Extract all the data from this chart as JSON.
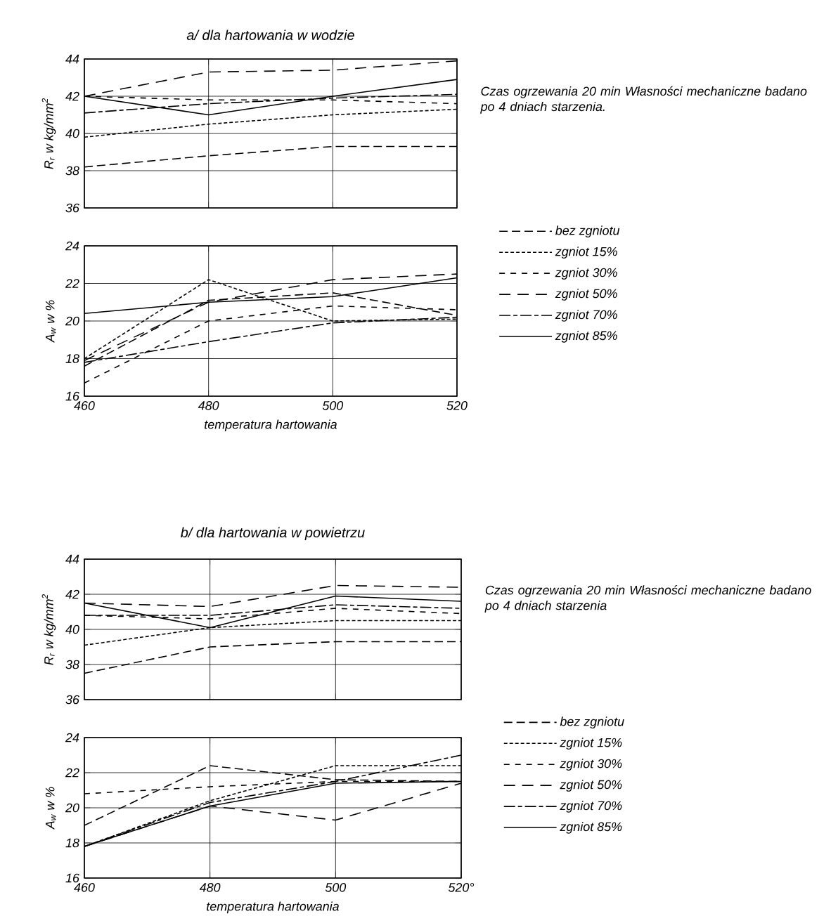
{
  "chart_data": [
    {
      "type": "line",
      "title": "a/ dla hartowania w wodzie",
      "ylabel": "R$_{r}$ w kg/mm$^{2}$",
      "annotations": [
        "Czas ogrzewania 20 min Własności mechaniczne badano po 4 dniach starzenia."
      ],
      "x": [
        460,
        480,
        500,
        520
      ],
      "xlim": [
        460,
        520
      ],
      "xticks": [
        460,
        480,
        500,
        520
      ],
      "ylim": [
        36,
        44
      ],
      "yticks": [
        36,
        38,
        40,
        42,
        44
      ],
      "grid": true,
      "legend": "right",
      "tick_labels": "y",
      "series": [
        {
          "name": "bez zgniotu",
          "color": "#000000",
          "line_style": "dashed",
          "values": [
            38.2,
            38.8,
            39.3,
            39.3
          ]
        },
        {
          "name": "zgniot 15%",
          "color": "#000000",
          "line_style": "dotted",
          "values": [
            39.8,
            40.5,
            41.0,
            41.3
          ]
        },
        {
          "name": "zgniot 30%",
          "color": "#000000",
          "line_style": "dashed",
          "values": [
            42.0,
            41.8,
            41.8,
            41.6
          ]
        },
        {
          "name": "zgniot 50%",
          "color": "#000000",
          "line_style": "dashed",
          "values": [
            42.0,
            43.3,
            43.4,
            43.9
          ]
        },
        {
          "name": "zgniot 70%",
          "color": "#000000",
          "line_style": "dashed",
          "values": [
            41.1,
            41.6,
            41.9,
            42.1
          ]
        },
        {
          "name": "zgniot 85%",
          "color": "#000000",
          "line_style": "solid",
          "values": [
            42.0,
            41.0,
            42.0,
            42.9
          ]
        }
      ]
    },
    {
      "type": "line",
      "ylabel": "A$_{w}$ w %",
      "xlabel": "temperatura hartowania",
      "x": [
        460,
        480,
        500,
        520
      ],
      "xlim": [
        460,
        520
      ],
      "xticks": [
        460,
        480,
        500,
        520
      ],
      "ylim": [
        16,
        24
      ],
      "yticks": [
        16,
        18,
        20,
        22,
        24
      ],
      "grid": true,
      "series": [
        {
          "color": "#000000",
          "line_style": "dashed",
          "values": [
            17.6,
            21.1,
            21.5,
            20.3
          ]
        },
        {
          "color": "#000000",
          "line_style": "dotted",
          "values": [
            18.0,
            22.2,
            20.0,
            20.1
          ]
        },
        {
          "color": "#000000",
          "line_style": "dashed",
          "values": [
            16.7,
            20.0,
            20.8,
            20.6
          ]
        },
        {
          "color": "#000000",
          "line_style": "dashed",
          "values": [
            17.9,
            21.0,
            22.2,
            22.5
          ]
        },
        {
          "color": "#000000",
          "line_style": "dashed",
          "values": [
            17.8,
            18.9,
            19.9,
            20.2
          ]
        },
        {
          "color": "#000000",
          "line_style": "solid",
          "values": [
            20.4,
            21.0,
            21.3,
            22.3
          ]
        }
      ]
    },
    {
      "type": "line",
      "title": "b/ dla hartowania w powietrzu",
      "ylabel": "R$_{r}$ w kg/mm$^{2}$",
      "annotations": [
        "Czas ogrzewania 20 min Własności mechaniczne badano po 4 dniach starzenia"
      ],
      "x": [
        460,
        480,
        500,
        520
      ],
      "xlim": [
        460,
        520
      ],
      "xticks": [
        460,
        480,
        500,
        520
      ],
      "ylim": [
        36,
        44
      ],
      "yticks": [
        36,
        38,
        40,
        42,
        44
      ],
      "grid": true,
      "legend": "right",
      "tick_labels": "y",
      "series": [
        {
          "name": "bez zgniotu",
          "color": "#000000",
          "line_style": "dashed",
          "values": [
            37.5,
            39.0,
            39.3,
            39.3
          ]
        },
        {
          "name": "zgniot 15%",
          "color": "#000000",
          "line_style": "dotted",
          "values": [
            39.1,
            40.1,
            40.5,
            40.5
          ]
        },
        {
          "name": "zgniot 30%",
          "color": "#000000",
          "line_style": "dashed",
          "values": [
            40.8,
            40.6,
            41.2,
            40.9
          ]
        },
        {
          "name": "zgniot 50%",
          "color": "#000000",
          "line_style": "dashed",
          "values": [
            41.5,
            41.3,
            42.5,
            42.4
          ]
        },
        {
          "name": "zgniot 70%",
          "color": "#000000",
          "line_style": "dashed",
          "values": [
            40.8,
            40.8,
            41.4,
            41.2
          ]
        },
        {
          "name": "zgniot 85%",
          "color": "#000000",
          "line_style": "solid",
          "values": [
            41.5,
            40.1,
            41.9,
            41.6
          ]
        }
      ]
    },
    {
      "type": "line",
      "ylabel": "A$_{w}$ w %",
      "xlabel": "temperatura hartowania",
      "x": [
        460,
        480,
        500,
        520
      ],
      "xlim": [
        460,
        520
      ],
      "xticks": [
        460,
        480,
        500,
        {
          "value": 520,
          "label": "520°"
        }
      ],
      "ylim": [
        16,
        24
      ],
      "yticks": [
        16,
        18,
        20,
        22,
        24
      ],
      "grid": true,
      "series": [
        {
          "color": "#000000",
          "line_style": "dashed",
          "values": [
            19.0,
            22.4,
            21.6,
            21.5
          ]
        },
        {
          "color": "#000000",
          "line_style": "dotted",
          "values": [
            17.8,
            20.4,
            22.4,
            22.4
          ]
        },
        {
          "color": "#000000",
          "line_style": "dashed",
          "values": [
            20.8,
            21.2,
            21.5,
            21.5
          ]
        },
        {
          "color": "#000000",
          "line_style": "dashed",
          "values": [
            17.8,
            20.1,
            19.3,
            21.4
          ]
        },
        {
          "color": "#000000",
          "line_style": "dashed",
          "values": [
            17.8,
            20.3,
            21.5,
            23.0
          ]
        },
        {
          "color": "#000000",
          "line_style": "solid",
          "values": [
            17.8,
            20.1,
            21.4,
            21.5
          ]
        }
      ]
    }
  ]
}
